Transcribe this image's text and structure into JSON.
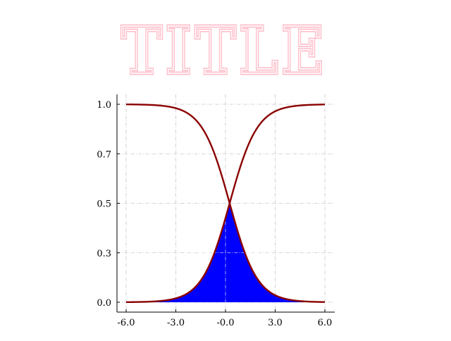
{
  "colors": {
    "background": "#ffffff",
    "title": "#ffc0cb",
    "curve": "#8b0000",
    "fill": "#0000ff",
    "grid": "#c8c8c8",
    "axis": "#000000"
  },
  "chart_data": {
    "type": "area",
    "title": "TITLE",
    "xlabel": "",
    "ylabel": "",
    "xlim": [
      -6.2,
      6.2
    ],
    "ylim": [
      -0.05,
      1.05
    ],
    "x_ticks": [
      -6.0,
      -3.0,
      0.0,
      3.0,
      6.0
    ],
    "x_tick_labels": [
      "-6.0",
      "-3.0",
      "-0.0",
      "3.0",
      "6.0"
    ],
    "y_ticks": [
      0.0,
      0.25,
      0.5,
      0.75,
      1.0
    ],
    "y_tick_labels": [
      "0.0",
      "0.3",
      "0.5",
      "0.7",
      "1.0"
    ],
    "grid": true,
    "grid_style": "dash-dot",
    "legend": "none",
    "series": [
      {
        "function": "logistic",
        "k": 1.2,
        "x0": 0.25,
        "direction": "decreasing"
      },
      {
        "function": "logistic",
        "k": 1.2,
        "x0": 0.25,
        "direction": "increasing"
      }
    ],
    "filled_region": "area under min of the two curves, from x = -6 to 6",
    "x": [
      -6.0,
      -4.0,
      -3.0,
      -2.0,
      -1.0,
      0.0,
      0.25,
      0.5,
      1.0,
      2.0,
      3.0,
      4.0,
      6.0
    ],
    "decreasing_values": [
      1.0,
      0.99,
      0.98,
      0.94,
      0.82,
      0.57,
      0.5,
      0.43,
      0.29,
      0.11,
      0.04,
      0.01,
      0.0
    ],
    "increasing_values": [
      0.0,
      0.01,
      0.02,
      0.06,
      0.18,
      0.43,
      0.5,
      0.57,
      0.71,
      0.89,
      0.96,
      0.99,
      1.0
    ]
  }
}
